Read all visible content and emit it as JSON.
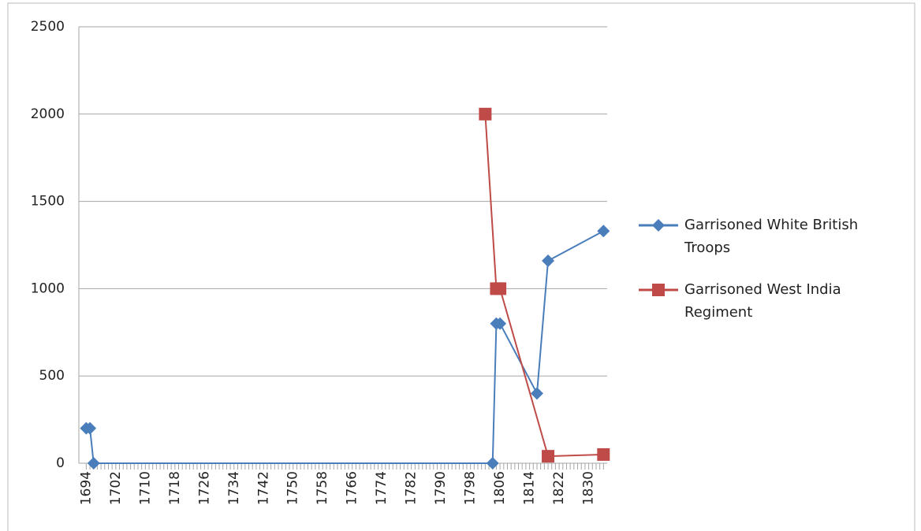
{
  "chart_data": {
    "type": "line",
    "xlim": [
      1692,
      1835
    ],
    "xticks": [
      1694,
      1702,
      1710,
      1718,
      1726,
      1734,
      1742,
      1750,
      1758,
      1766,
      1774,
      1782,
      1790,
      1798,
      1806,
      1814,
      1822,
      1830
    ],
    "xminor_ticks": [
      1694,
      1695,
      1696,
      1697,
      1698,
      1699,
      1700,
      1701,
      1702,
      1703,
      1704,
      1705,
      1706,
      1707,
      1708,
      1709,
      1710,
      1711,
      1712,
      1713,
      1714,
      1715,
      1716,
      1717,
      1718,
      1719,
      1720,
      1721,
      1722,
      1723,
      1724,
      1725,
      1726,
      1727,
      1728,
      1729,
      1730,
      1731,
      1732,
      1733,
      1734,
      1735,
      1736,
      1737,
      1738,
      1739,
      1740,
      1741,
      1742,
      1743,
      1744,
      1745,
      1746,
      1747,
      1748,
      1749,
      1750,
      1751,
      1752,
      1753,
      1754,
      1755,
      1756,
      1757,
      1758,
      1759,
      1760,
      1761,
      1762,
      1763,
      1764,
      1765,
      1766,
      1767,
      1768,
      1769,
      1770,
      1771,
      1772,
      1773,
      1774,
      1775,
      1776,
      1777,
      1778,
      1779,
      1780,
      1781,
      1782,
      1783,
      1784,
      1785,
      1786,
      1787,
      1788,
      1789,
      1790,
      1791,
      1792,
      1793,
      1794,
      1795,
      1796,
      1797,
      1798,
      1799,
      1800,
      1801,
      1802,
      1803,
      1804,
      1805,
      1806,
      1807,
      1808,
      1809,
      1810,
      1811,
      1812,
      1813,
      1814,
      1815,
      1816,
      1817,
      1818,
      1819,
      1820,
      1821,
      1822,
      1823,
      1824,
      1825,
      1826,
      1827,
      1828,
      1829,
      1830,
      1831,
      1832,
      1833,
      1834
    ],
    "ylim": [
      0,
      2500
    ],
    "yticks": [
      0,
      500,
      1000,
      1500,
      2000,
      2500
    ],
    "grid": true,
    "legend": "right",
    "series": [
      {
        "name": "Garrisoned White British Troops",
        "color": "#4a7ebb",
        "marker": "diamond",
        "x": [
          1694,
          1695,
          1696,
          1804,
          1805,
          1806,
          1816,
          1819,
          1834
        ],
        "values": [
          200,
          200,
          0,
          0,
          800,
          800,
          400,
          1160,
          1330
        ]
      },
      {
        "name": "Garrisoned West India Regiment",
        "color": "#be4b48",
        "marker": "square",
        "x": [
          1802,
          1805,
          1806,
          1819,
          1834
        ],
        "values": [
          2000,
          1000,
          1000,
          40,
          50
        ]
      }
    ]
  }
}
